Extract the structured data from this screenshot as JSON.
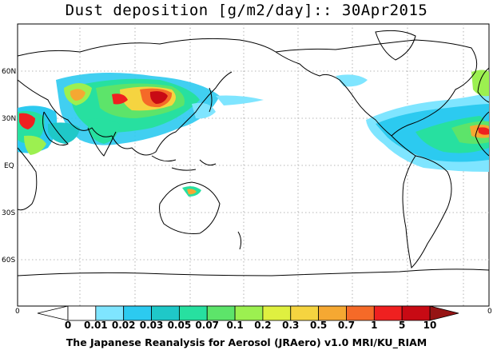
{
  "title": "Dust deposition [g/m2/day]:: 30Apr2015",
  "footer": "The Japanese Reanalysis for Aerosol (JRAero) v1.0 MRI/KU_RIAM",
  "map": {
    "lat_labels": [
      "60N",
      "30N",
      "EQ",
      "30S",
      "60S"
    ],
    "edge_left": "0",
    "edge_right": "0"
  },
  "colorbar": {
    "labels": [
      "0",
      "0.01",
      "0.02",
      "0.03",
      "0.05",
      "0.07",
      "0.1",
      "0.2",
      "0.3",
      "0.5",
      "0.7",
      "1",
      "5",
      "10"
    ],
    "colors": [
      "#ffffff",
      "#7fe5ff",
      "#2ccaf0",
      "#1fc8c8",
      "#27e0a0",
      "#5de46a",
      "#9cf050",
      "#dff040",
      "#f5d440",
      "#f5a832",
      "#f56a28",
      "#ef2020",
      "#c80a14",
      "#961414"
    ]
  }
}
